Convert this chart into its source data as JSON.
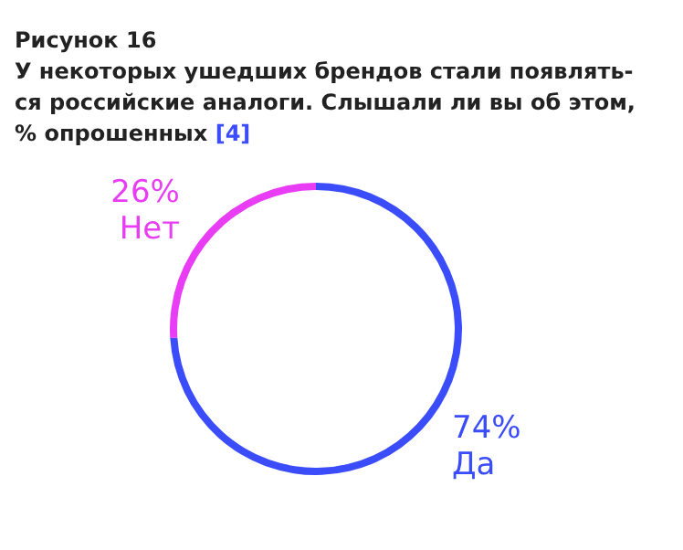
{
  "chart_data": {
    "type": "donut",
    "title": "Рисунок 16",
    "subtitle": "У некоторых ушедших брендов стали появлять-\nся российские аналоги. Слышали ли вы об этом,\n% опрошенных",
    "annotations": [
      "[4]"
    ],
    "categories": [
      "Да",
      "Нет"
    ],
    "values": [
      74,
      26
    ],
    "colors": [
      "#3b4cfa",
      "#e83cf5"
    ],
    "value_labels": [
      "74%",
      "26%"
    ],
    "legend": false
  }
}
